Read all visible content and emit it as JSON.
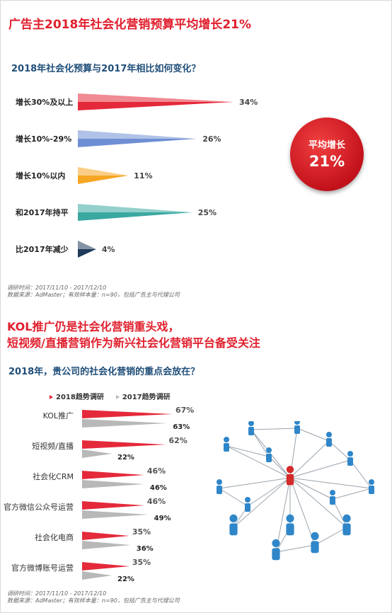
{
  "header": {
    "title": "广告主2018年社会化营销预算平均增长21%",
    "question1": "2018年社会化预算与2017年相比如何变化？"
  },
  "badge": {
    "line1": "平均增长",
    "line2": "21%"
  },
  "source1": {
    "line1": "调研时间：2017/11/10 - 2017/12/10",
    "line2": "数据来源：AdMaster；有效样本量：n=90，包括广告主与代理公司"
  },
  "section2": {
    "title_line1": "KOL推广仍是社会化营销重头戏，",
    "title_line2": "短视频/直播营销作为新兴社会化营销平台备受关注",
    "question2": "2018年，贵公司的社会化营销的重点会放在？"
  },
  "source2": {
    "line1": "调研时间：2017/11/10 - 2017/12/10",
    "line2": "数据来源：AdMaster；有效样本量：n=90，包括广告主与代理公司"
  },
  "network_image": {
    "icon": "people-network-icon"
  },
  "colors": {
    "accent_red": "#e0202e",
    "navy": "#1f4e79",
    "gray": "#bfbfbf"
  },
  "chart_data": [
    {
      "type": "bar",
      "categories": [
        "增长30%及以上",
        "增长10%-29%",
        "增长10%以内",
        "和2017年持平",
        "比2017年减少"
      ],
      "values": [
        34,
        26,
        11,
        25,
        4
      ],
      "value_labels": [
        "34%",
        "26%",
        "11%",
        "25%",
        "4%"
      ],
      "colors": [
        "#e4293a",
        "#6f8fd4",
        "#f5a623",
        "#3aa8a0",
        "#1f3a5a"
      ],
      "orientation": "horizontal",
      "title": "2018年社会化预算与2017年相比如何变化？"
    },
    {
      "type": "bar",
      "categories": [
        "KOL推广",
        "短视频/直播",
        "社会化CRM",
        "官方微信公众号运营",
        "社会化电商",
        "官方微博账号运营"
      ],
      "series": [
        {
          "name": "2018趋势调研",
          "values": [
            67,
            62,
            46,
            46,
            35,
            35
          ],
          "labels": [
            "67%",
            "62%",
            "46%",
            "46%",
            "35%",
            "35%"
          ],
          "color": "#e4293a"
        },
        {
          "name": "2017趋势调研",
          "values": [
            63,
            22,
            46,
            49,
            36,
            22
          ],
          "labels": [
            "63%",
            "22%",
            "46%",
            "49%",
            "36%",
            "22%"
          ],
          "color": "#b8b8b8"
        }
      ],
      "orientation": "horizontal",
      "legend": "top-left",
      "title": "2018年，贵公司的社会化营销的重点会放在？"
    }
  ]
}
